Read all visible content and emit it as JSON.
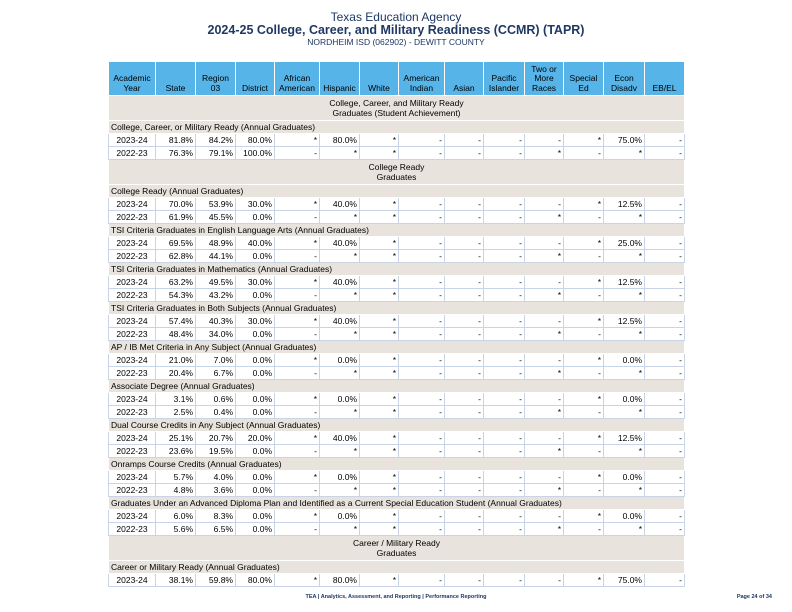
{
  "header": {
    "agency": "Texas Education Agency",
    "title": "2024-25 College, Career, and Military Readiness (CCMR) (TAPR)",
    "subtitle": "NORDHEIM ISD (062902) - DEWITT COUNTY"
  },
  "columns": [
    "Academic Year",
    "State",
    "Region 03",
    "District",
    "African American",
    "Hispanic",
    "White",
    "American Indian",
    "Asian",
    "Pacific Islander",
    "Two or More Races",
    "Special Ed",
    "Econ Disadv",
    "EB/EL"
  ],
  "rows": [
    {
      "type": "section",
      "text": "College, Career, and Military Ready\nGraduates (Student Achievement)"
    },
    {
      "type": "sub",
      "text": "College, Career, or Military Ready (Annual Graduates)"
    },
    {
      "type": "data",
      "cells": [
        "2023-24",
        "81.8%",
        "84.2%",
        "80.0%",
        "*",
        "80.0%",
        "*",
        "-",
        "-",
        "-",
        "-",
        "*",
        "75.0%",
        "-"
      ]
    },
    {
      "type": "data",
      "cells": [
        "2022-23",
        "76.3%",
        "79.1%",
        "100.0%",
        "-",
        "*",
        "*",
        "-",
        "-",
        "-",
        "*",
        "-",
        "*",
        "-"
      ]
    },
    {
      "type": "section",
      "text": "College Ready\nGraduates"
    },
    {
      "type": "sub",
      "text": "College Ready (Annual Graduates)"
    },
    {
      "type": "data",
      "cells": [
        "2023-24",
        "70.0%",
        "53.9%",
        "30.0%",
        "*",
        "40.0%",
        "*",
        "-",
        "-",
        "-",
        "-",
        "*",
        "12.5%",
        "-"
      ]
    },
    {
      "type": "data",
      "cells": [
        "2022-23",
        "61.9%",
        "45.5%",
        "0.0%",
        "-",
        "*",
        "*",
        "-",
        "-",
        "-",
        "*",
        "-",
        "*",
        "-"
      ]
    },
    {
      "type": "sub",
      "text": "TSI Criteria Graduates in English Language Arts (Annual Graduates)"
    },
    {
      "type": "data",
      "cells": [
        "2023-24",
        "69.5%",
        "48.9%",
        "40.0%",
        "*",
        "40.0%",
        "*",
        "-",
        "-",
        "-",
        "-",
        "*",
        "25.0%",
        "-"
      ]
    },
    {
      "type": "data",
      "cells": [
        "2022-23",
        "62.8%",
        "44.1%",
        "0.0%",
        "-",
        "*",
        "*",
        "-",
        "-",
        "-",
        "*",
        "-",
        "*",
        "-"
      ]
    },
    {
      "type": "sub",
      "text": "TSI Criteria Graduates in Mathematics (Annual Graduates)"
    },
    {
      "type": "data",
      "cells": [
        "2023-24",
        "63.2%",
        "49.5%",
        "30.0%",
        "*",
        "40.0%",
        "*",
        "-",
        "-",
        "-",
        "-",
        "*",
        "12.5%",
        "-"
      ]
    },
    {
      "type": "data",
      "cells": [
        "2022-23",
        "54.3%",
        "43.2%",
        "0.0%",
        "-",
        "*",
        "*",
        "-",
        "-",
        "-",
        "*",
        "-",
        "*",
        "-"
      ]
    },
    {
      "type": "sub",
      "text": "TSI Criteria Graduates in Both Subjects (Annual Graduates)"
    },
    {
      "type": "data",
      "cells": [
        "2023-24",
        "57.4%",
        "40.3%",
        "30.0%",
        "*",
        "40.0%",
        "*",
        "-",
        "-",
        "-",
        "-",
        "*",
        "12.5%",
        "-"
      ]
    },
    {
      "type": "data",
      "cells": [
        "2022-23",
        "48.4%",
        "34.0%",
        "0.0%",
        "-",
        "*",
        "*",
        "-",
        "-",
        "-",
        "*",
        "-",
        "*",
        "-"
      ]
    },
    {
      "type": "sub",
      "text": "AP / IB Met Criteria in Any Subject (Annual Graduates)"
    },
    {
      "type": "data",
      "cells": [
        "2023-24",
        "21.0%",
        "7.0%",
        "0.0%",
        "*",
        "0.0%",
        "*",
        "-",
        "-",
        "-",
        "-",
        "*",
        "0.0%",
        "-"
      ]
    },
    {
      "type": "data",
      "cells": [
        "2022-23",
        "20.4%",
        "6.7%",
        "0.0%",
        "-",
        "*",
        "*",
        "-",
        "-",
        "-",
        "*",
        "-",
        "*",
        "-"
      ]
    },
    {
      "type": "sub",
      "text": "Associate Degree (Annual Graduates)"
    },
    {
      "type": "data",
      "cells": [
        "2023-24",
        "3.1%",
        "0.6%",
        "0.0%",
        "*",
        "0.0%",
        "*",
        "-",
        "-",
        "-",
        "-",
        "*",
        "0.0%",
        "-"
      ]
    },
    {
      "type": "data",
      "cells": [
        "2022-23",
        "2.5%",
        "0.4%",
        "0.0%",
        "-",
        "*",
        "*",
        "-",
        "-",
        "-",
        "*",
        "-",
        "*",
        "-"
      ]
    },
    {
      "type": "sub",
      "text": "Dual Course Credits in Any Subject (Annual Graduates)"
    },
    {
      "type": "data",
      "cells": [
        "2023-24",
        "25.1%",
        "20.7%",
        "20.0%",
        "*",
        "40.0%",
        "*",
        "-",
        "-",
        "-",
        "-",
        "*",
        "12.5%",
        "-"
      ]
    },
    {
      "type": "data",
      "cells": [
        "2022-23",
        "23.6%",
        "19.5%",
        "0.0%",
        "-",
        "*",
        "*",
        "-",
        "-",
        "-",
        "*",
        "-",
        "*",
        "-"
      ]
    },
    {
      "type": "sub",
      "text": "Onramps Course Credits (Annual Graduates)"
    },
    {
      "type": "data",
      "cells": [
        "2023-24",
        "5.7%",
        "4.0%",
        "0.0%",
        "*",
        "0.0%",
        "*",
        "-",
        "-",
        "-",
        "-",
        "*",
        "0.0%",
        "-"
      ]
    },
    {
      "type": "data",
      "cells": [
        "2022-23",
        "4.8%",
        "3.6%",
        "0.0%",
        "-",
        "*",
        "*",
        "-",
        "-",
        "-",
        "*",
        "-",
        "*",
        "-"
      ]
    },
    {
      "type": "sub",
      "text": "Graduates Under an Advanced Diploma Plan and Identified as a Current Special Education Student (Annual Graduates)"
    },
    {
      "type": "data",
      "cells": [
        "2023-24",
        "6.0%",
        "8.3%",
        "0.0%",
        "*",
        "0.0%",
        "*",
        "-",
        "-",
        "-",
        "-",
        "*",
        "0.0%",
        "-"
      ]
    },
    {
      "type": "data",
      "cells": [
        "2022-23",
        "5.6%",
        "6.5%",
        "0.0%",
        "-",
        "*",
        "*",
        "-",
        "-",
        "-",
        "*",
        "-",
        "*",
        "-"
      ]
    },
    {
      "type": "section",
      "text": "Career / Military Ready\nGraduates"
    },
    {
      "type": "sub",
      "text": "Career or Military Ready (Annual Graduates)"
    },
    {
      "type": "data",
      "cells": [
        "2023-24",
        "38.1%",
        "59.8%",
        "80.0%",
        "*",
        "80.0%",
        "*",
        "-",
        "-",
        "-",
        "-",
        "*",
        "75.0%",
        "-"
      ]
    }
  ],
  "footer": {
    "text": "TEA | Analytics, Assessment, and Reporting | Performance Reporting",
    "page": "Page 24 of 34"
  },
  "colors": {
    "header_bg": "#56b4e9",
    "section_bg": "#e8e3dc",
    "title": "#1f3864"
  }
}
